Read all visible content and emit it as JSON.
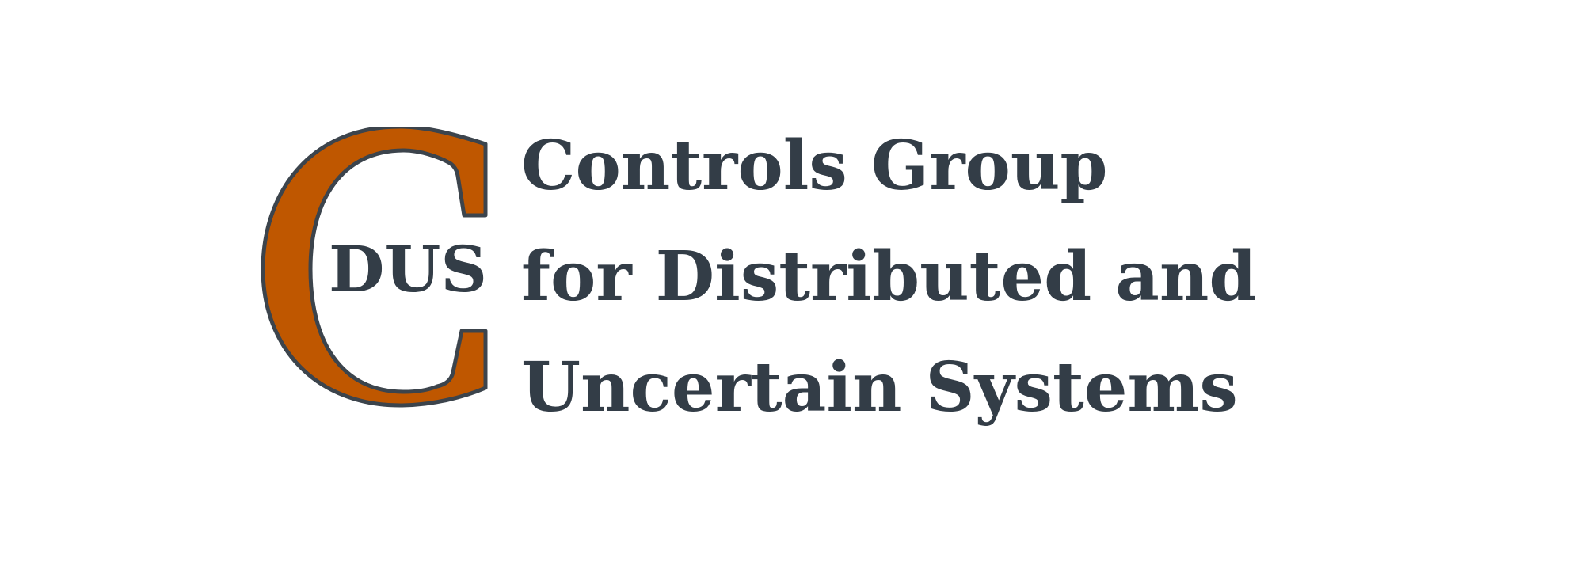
{
  "logo": {
    "mark_letters": "CDUS",
    "inner_text": "DUS",
    "accent_color": "#bf5700",
    "text_color": "#333d47",
    "outline_color": "#3c444c"
  },
  "wordmark": {
    "line1": "Controls Group",
    "line2": "for Distributed and",
    "line3": "Uncertain Systems"
  }
}
